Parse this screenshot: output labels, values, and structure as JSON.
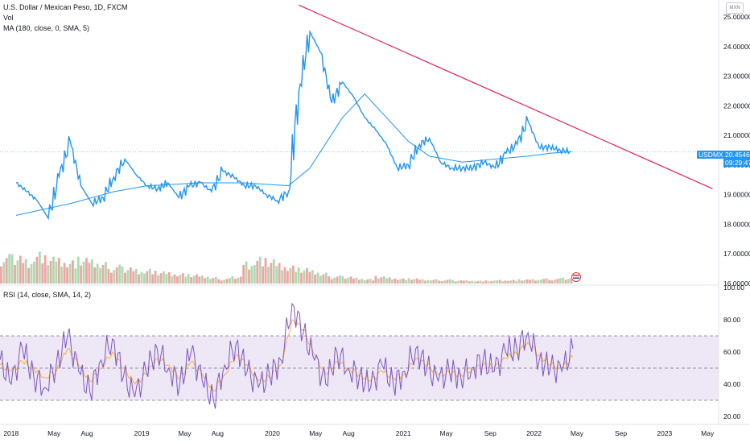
{
  "legend": {
    "main": "U.S. Dollar / Mexican Peso, 1D, FXCM",
    "vol": "Vol",
    "ma": "MA (180, close, 0, SMA, 5)",
    "rsi": "RSI (14, close, SMA, 14, 2)"
  },
  "currency_badge": "MXN",
  "price_tag": {
    "symbol": "USDMXN",
    "price": "20.45460",
    "countdown": "09:29:47"
  },
  "colors": {
    "price_line": "#2196f3",
    "trendline": "#e91e63",
    "rsi_line": "#7e57c2",
    "rsi_ma": "#f5b04b",
    "rsi_band": "#ede7f6",
    "vol_up": "#a5d6a7",
    "vol_down": "#ef9a9a",
    "flag_icon_red": "#e53935",
    "flag_icon_blue": "#1e5aa8"
  },
  "icons": {
    "event_flag": "us-flag-circle-icon"
  },
  "chart_data": [
    {
      "type": "line",
      "title": "U.S. Dollar / Mexican Peso, 1D, FXCM",
      "ylim": [
        16.0,
        25.3
      ],
      "y_ticks": [
        "25.00000",
        "24.00000",
        "23.00000",
        "22.00000",
        "21.00000",
        "20.00000",
        "19.00000",
        "18.00000",
        "17.00000",
        "16.00000"
      ],
      "x_ticks": [
        "2018",
        "May",
        "Aug",
        "2019",
        "May",
        "Aug",
        "2020",
        "May",
        "Aug",
        "2021",
        "May",
        "Sep",
        "2022",
        "May",
        "Sep",
        "2023",
        "May"
      ],
      "grid": false,
      "series": [
        {
          "name": "USDMXN",
          "x": [
            "2018-01",
            "2018-02",
            "2018-03",
            "2018-04",
            "2018-05",
            "2018-06",
            "2018-07",
            "2018-08",
            "2018-09",
            "2018-10",
            "2018-11",
            "2018-12",
            "2019-01",
            "2019-02",
            "2019-03",
            "2019-04",
            "2019-05",
            "2019-06",
            "2019-07",
            "2019-08",
            "2019-09",
            "2019-10",
            "2019-11",
            "2019-12",
            "2020-01",
            "2020-02",
            "2020-03",
            "2020-04",
            "2020-05",
            "2020-06",
            "2020-07",
            "2020-08",
            "2020-09",
            "2020-10",
            "2020-11",
            "2020-12",
            "2021-01",
            "2021-02",
            "2021-03",
            "2021-04",
            "2021-05",
            "2021-06",
            "2021-07",
            "2021-08",
            "2021-09",
            "2021-10",
            "2021-11",
            "2021-12",
            "2022-01",
            "2022-02",
            "2022-03",
            "2022-04"
          ],
          "values": [
            19.4,
            19.1,
            18.8,
            18.2,
            19.6,
            20.8,
            19.3,
            18.7,
            18.9,
            19.6,
            20.2,
            19.7,
            19.3,
            19.2,
            19.4,
            18.9,
            19.3,
            19.4,
            19.1,
            19.8,
            19.6,
            19.3,
            19.3,
            19.0,
            18.8,
            19.1,
            22.5,
            24.5,
            23.8,
            22.1,
            22.8,
            22.3,
            21.6,
            21.2,
            20.7,
            19.9,
            20.0,
            20.7,
            20.9,
            20.1,
            19.9,
            19.9,
            19.9,
            20.1,
            19.9,
            20.4,
            20.7,
            21.5,
            20.6,
            20.6,
            20.5,
            20.45
          ]
        },
        {
          "name": "MA (180, close, 0, SMA, 5)",
          "x": [
            "2018-01",
            "2018-06",
            "2018-10",
            "2019-01",
            "2019-06",
            "2019-10",
            "2020-02",
            "2020-04",
            "2020-07",
            "2020-09",
            "2020-11",
            "2021-01",
            "2021-03",
            "2021-06",
            "2021-09",
            "2021-12",
            "2022-02",
            "2022-04"
          ],
          "values": [
            18.3,
            18.7,
            19.1,
            19.3,
            19.4,
            19.4,
            19.3,
            19.9,
            21.6,
            22.4,
            21.6,
            20.8,
            20.3,
            20.1,
            20.2,
            20.3,
            20.4,
            20.45
          ]
        },
        {
          "name": "Trendline",
          "x": [
            "2020-03",
            "2023-05"
          ],
          "values": [
            25.4,
            19.2
          ]
        }
      ]
    },
    {
      "type": "bar",
      "title": "Vol",
      "note": "Volume histogram, relative scale",
      "values": [
        0.55,
        0.6,
        0.5,
        0.65,
        0.55,
        0.5,
        0.45,
        0.5,
        0.45,
        0.4,
        0.35,
        0.35,
        0.3,
        0.3,
        0.25,
        0.22,
        0.2,
        0.18,
        0.15,
        0.12,
        0.1,
        0.15,
        0.45,
        0.55,
        0.5,
        0.4,
        0.35,
        0.3,
        0.25,
        0.2,
        0.15,
        0.15,
        0.12,
        0.1,
        0.15,
        0.12,
        0.1,
        0.1,
        0.08,
        0.08,
        0.08,
        0.07,
        0.07,
        0.06,
        0.06,
        0.07,
        0.07,
        0.08,
        0.08,
        0.1,
        0.1,
        0.12
      ]
    },
    {
      "type": "line",
      "title": "RSI (14, close, SMA, 14, 2)",
      "ylim": [
        15,
        100
      ],
      "y_ticks": [
        "100.00",
        "80.00",
        "60.00",
        "40.00",
        "20.00"
      ],
      "bands": [
        30,
        50,
        70
      ],
      "series": [
        {
          "name": "RSI",
          "values": [
            55,
            40,
            62,
            45,
            38,
            52,
            70,
            48,
            35,
            55,
            68,
            45,
            32,
            48,
            62,
            50,
            40,
            60,
            42,
            30,
            52,
            65,
            48,
            38,
            45,
            55,
            90,
            72,
            55,
            40,
            60,
            50,
            45,
            38,
            52,
            40,
            48,
            62,
            50,
            42,
            48,
            45,
            50,
            55,
            48,
            60,
            62,
            72,
            55,
            50,
            48,
            62
          ]
        },
        {
          "name": "RSI-based MA",
          "values": [
            52,
            48,
            54,
            50,
            44,
            48,
            62,
            52,
            42,
            50,
            60,
            50,
            40,
            46,
            56,
            52,
            44,
            54,
            46,
            36,
            46,
            58,
            52,
            42,
            44,
            52,
            80,
            74,
            58,
            46,
            54,
            50,
            46,
            42,
            48,
            44,
            46,
            56,
            52,
            46,
            47,
            46,
            49,
            52,
            50,
            56,
            59,
            66,
            58,
            52,
            50,
            57
          ]
        }
      ]
    }
  ]
}
